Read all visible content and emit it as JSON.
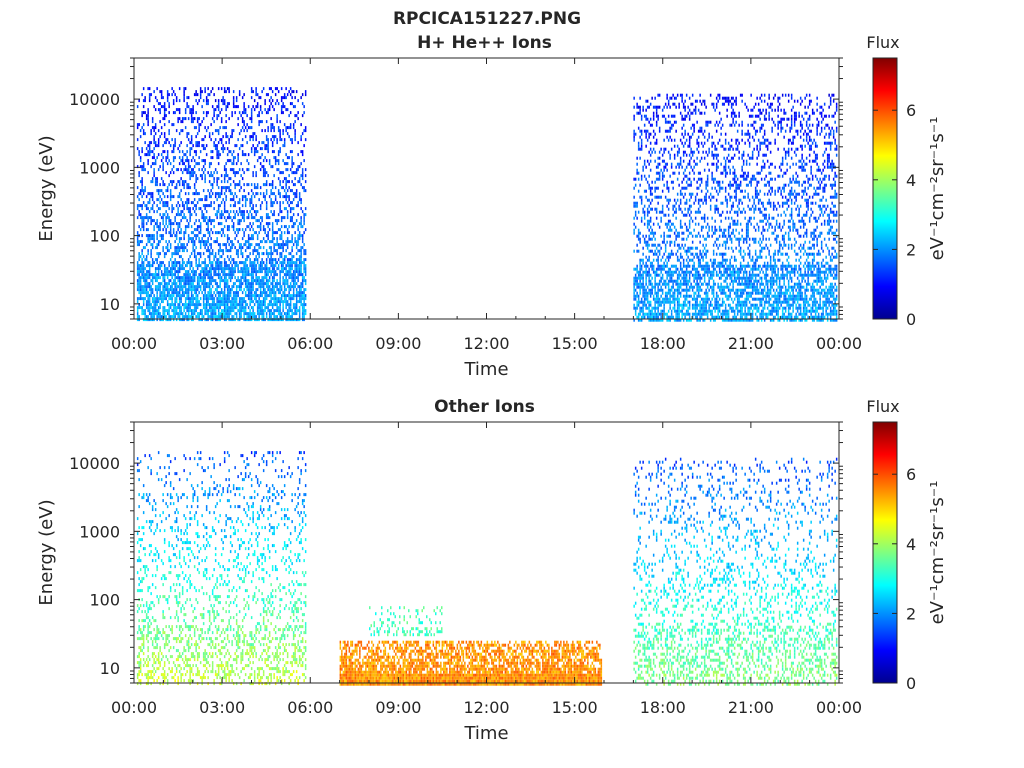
{
  "figure_title": "RPCICA151227.PNG",
  "colormap": [
    "#00008f",
    "#0000ff",
    "#0080ff",
    "#00ffff",
    "#80ff80",
    "#ffff00",
    "#ff8000",
    "#ff0000",
    "#800000"
  ],
  "chart_data": [
    {
      "type": "heatmap",
      "title": "H+ He++ Ions",
      "xlabel": "Time",
      "ylabel": "Energy (eV)",
      "x_tick_labels": [
        "00:00",
        "03:00",
        "06:00",
        "09:00",
        "12:00",
        "15:00",
        "18:00",
        "21:00",
        "00:00"
      ],
      "x_tick_hours": [
        0,
        3,
        6,
        9,
        12,
        15,
        18,
        21,
        24
      ],
      "xlim_hours": [
        0,
        24
      ],
      "y_scale": "log",
      "ylim": [
        6,
        40000
      ],
      "y_tick_values": [
        10,
        100,
        1000,
        10000
      ],
      "y_tick_labels": [
        "10",
        "100",
        "1000",
        "10000"
      ],
      "colorbar": {
        "title": "Flux",
        "label": "eV⁻¹cm⁻²sr⁻¹s⁻¹",
        "range": [
          0,
          7.5
        ],
        "ticks": [
          0,
          2,
          4,
          6
        ],
        "tick_labels": [
          "0",
          "2",
          "4",
          "6"
        ]
      },
      "regions": [
        {
          "t_start": 0.1,
          "t_end": 5.85,
          "e_min": 6,
          "e_max": 15000,
          "flux_low": 2.2,
          "flux_high": 1.0,
          "density": 0.45
        },
        {
          "t_start": 17.0,
          "t_end": 23.9,
          "e_min": 6,
          "e_max": 12000,
          "flux_low": 2.2,
          "flux_high": 1.0,
          "density": 0.4
        }
      ]
    },
    {
      "type": "heatmap",
      "title": "Other Ions",
      "xlabel": "Time",
      "ylabel": "Energy (eV)",
      "x_tick_labels": [
        "00:00",
        "03:00",
        "06:00",
        "09:00",
        "12:00",
        "15:00",
        "18:00",
        "21:00",
        "00:00"
      ],
      "x_tick_hours": [
        0,
        3,
        6,
        9,
        12,
        15,
        18,
        21,
        24
      ],
      "xlim_hours": [
        0,
        24
      ],
      "y_scale": "log",
      "ylim": [
        6,
        40000
      ],
      "y_tick_values": [
        10,
        100,
        1000,
        10000
      ],
      "y_tick_labels": [
        "10",
        "100",
        "1000",
        "10000"
      ],
      "colorbar": {
        "title": "Flux",
        "label": "eV⁻¹cm⁻²sr⁻¹s⁻¹",
        "range": [
          0,
          7.5
        ],
        "ticks": [
          0,
          2,
          4,
          6
        ],
        "tick_labels": [
          "0",
          "2",
          "4",
          "6"
        ]
      },
      "regions": [
        {
          "t_start": 0.1,
          "t_end": 5.85,
          "e_min": 6,
          "e_max": 15000,
          "flux_low": 4.3,
          "flux_high": 1.5,
          "density": 0.22
        },
        {
          "t_start": 7.0,
          "t_end": 15.9,
          "e_min": 6,
          "e_max": 25,
          "flux_low": 5.5,
          "flux_high": 5.5,
          "density": 0.95
        },
        {
          "t_start": 8.0,
          "t_end": 10.5,
          "e_min": 30,
          "e_max": 80,
          "flux_low": 3.3,
          "flux_high": 3.3,
          "density": 0.25
        },
        {
          "t_start": 17.0,
          "t_end": 23.9,
          "e_min": 6,
          "e_max": 12000,
          "flux_low": 3.8,
          "flux_high": 1.5,
          "density": 0.22
        }
      ]
    }
  ]
}
